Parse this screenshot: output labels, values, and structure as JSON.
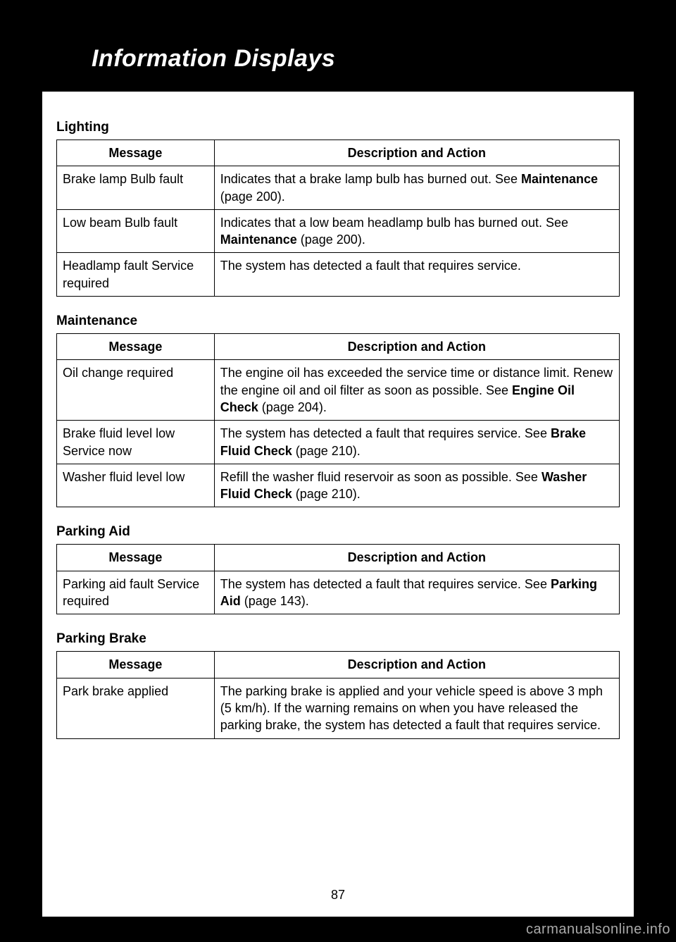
{
  "header": {
    "title": "Information Displays"
  },
  "columns": {
    "message": "Message",
    "description": "Description and Action"
  },
  "sections": {
    "lighting": {
      "title": "Lighting",
      "rows": [
        {
          "message": "Brake lamp Bulb fault",
          "d1": "Indicates that a brake lamp bulb has burned out.  See ",
          "b1": "Maintenance",
          "d2": " (page 200)."
        },
        {
          "message": "Low beam Bulb fault",
          "d1": "Indicates that a low beam headlamp bulb has burned out. See ",
          "b1": "Maintenance",
          "d2": " (page 200)."
        },
        {
          "message": "Headlamp fault Service required",
          "d1": "The system has detected a fault that requires service.",
          "b1": "",
          "d2": ""
        }
      ]
    },
    "maintenance": {
      "title": "Maintenance",
      "rows": [
        {
          "message": "Oil change required",
          "d1": "The engine oil has exceeded the service time or distance limit. Renew the engine oil and oil filter as soon as possible.  See ",
          "b1": "Engine Oil Check",
          "d2": " (page 204)."
        },
        {
          "message": "Brake fluid level low Service now",
          "d1": "The system has detected a fault that requires service.  See ",
          "b1": "Brake Fluid Check",
          "d2": " (page 210)."
        },
        {
          "message": "Washer fluid level low",
          "d1": "Refill the washer fluid reservoir as soon as possible.  See ",
          "b1": "Washer Fluid Check",
          "d2": " (page 210)."
        }
      ]
    },
    "parkingAid": {
      "title": "Parking Aid",
      "rows": [
        {
          "message": "Parking aid fault Service required",
          "d1": "The system has detected a fault that requires service.  See ",
          "b1": "Parking Aid",
          "d2": " (page 143)."
        }
      ]
    },
    "parkingBrake": {
      "title": "Parking Brake",
      "rows": [
        {
          "message": "Park brake applied",
          "d1": "The parking brake is applied and your vehicle speed is above 3 mph (5 km/h). If the warning remains on when you have released the parking brake, the system has detected a fault that requires service.",
          "b1": "",
          "d2": ""
        }
      ]
    }
  },
  "pageNumber": "87",
  "watermark": "carmanualsonline.info",
  "style": {
    "page_bg": "#ffffff",
    "outer_bg": "#000000",
    "header_bg": "#000000",
    "header_color": "#ffffff",
    "border_color": "#000000",
    "font_size_body": 18,
    "font_size_header": 34,
    "font_size_section": 19,
    "watermark_color": "#aaaaaa"
  }
}
